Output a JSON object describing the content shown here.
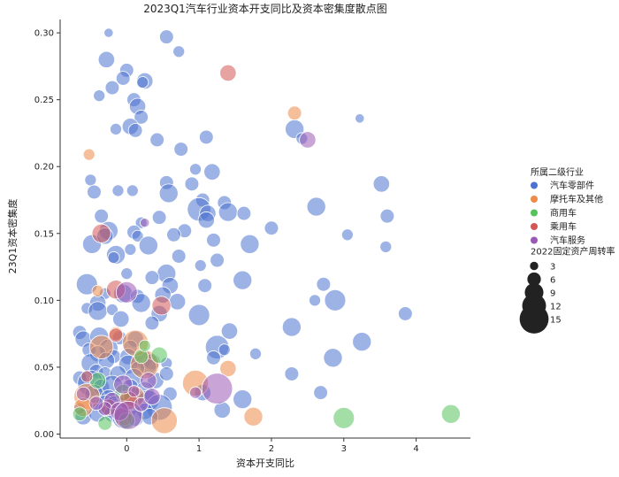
{
  "chart_data": {
    "type": "scatter",
    "title": "2023Q1汽车行业资本开支同比及资本密集度散点图",
    "xlabel": "资本开支同比",
    "ylabel": "23Q1资本密集度",
    "xlim": [
      -0.92,
      4.75
    ],
    "ylim": [
      -0.003,
      0.31
    ],
    "xticks": [
      0,
      1,
      2,
      3,
      4
    ],
    "yticks": [
      0.0,
      0.05,
      0.1,
      0.15,
      0.2,
      0.25,
      0.3
    ],
    "ytick_labels": [
      "0.00",
      "0.05",
      "0.10",
      "0.15",
      "0.20",
      "0.25",
      "0.30"
    ],
    "grid": false,
    "legend_placement": "right",
    "legend_hue_title": "所属二级行业",
    "legend_size_title": "2022固定资产周转率",
    "size_legend_values": [
      3,
      6,
      9,
      12,
      15
    ],
    "series": [
      {
        "name": "汽车零部件",
        "color": "#4c72d0",
        "points": [
          [
            -0.25,
            0.3,
            2
          ],
          [
            0.55,
            0.297,
            4
          ],
          [
            0.72,
            0.286,
            3
          ],
          [
            -0.28,
            0.28,
            5
          ],
          [
            0,
            0.272,
            4
          ],
          [
            -0.05,
            0.266,
            4
          ],
          [
            0.25,
            0.264,
            5
          ],
          [
            0.22,
            0.263,
            3
          ],
          [
            -0.2,
            0.259,
            4
          ],
          [
            -0.38,
            0.253,
            3
          ],
          [
            0.1,
            0.25,
            4
          ],
          [
            0.15,
            0.245,
            5
          ],
          [
            0.2,
            0.237,
            4
          ],
          [
            0.05,
            0.23,
            5
          ],
          [
            -0.15,
            0.228,
            3
          ],
          [
            0.12,
            0.227,
            4
          ],
          [
            2.32,
            0.228,
            6
          ],
          [
            3.22,
            0.236,
            2
          ],
          [
            2.42,
            0.221,
            3
          ],
          [
            1.1,
            0.222,
            4
          ],
          [
            0.42,
            0.22,
            4
          ],
          [
            0.75,
            0.213,
            4
          ],
          [
            0.95,
            0.198,
            3
          ],
          [
            1.18,
            0.196,
            5
          ],
          [
            -0.5,
            0.19,
            3
          ],
          [
            0.55,
            0.188,
            4
          ],
          [
            0.9,
            0.187,
            4
          ],
          [
            3.52,
            0.187,
            5
          ],
          [
            -0.45,
            0.181,
            4
          ],
          [
            0.08,
            0.182,
            3
          ],
          [
            -0.12,
            0.182,
            3
          ],
          [
            0.58,
            0.18,
            6
          ],
          [
            1.05,
            0.175,
            4
          ],
          [
            1.35,
            0.173,
            4
          ],
          [
            2.62,
            0.17,
            6
          ],
          [
            1.0,
            0.168,
            8
          ],
          [
            1.12,
            0.165,
            5
          ],
          [
            1.4,
            0.166,
            6
          ],
          [
            1.62,
            0.165,
            4
          ],
          [
            3.6,
            0.163,
            4
          ],
          [
            -0.35,
            0.163,
            4
          ],
          [
            1.1,
            0.16,
            5
          ],
          [
            0.45,
            0.162,
            4
          ],
          [
            0.2,
            0.158,
            3
          ],
          [
            2.0,
            0.154,
            4
          ],
          [
            0.8,
            0.152,
            4
          ],
          [
            -0.25,
            0.152,
            6
          ],
          [
            0.1,
            0.151,
            4
          ],
          [
            0.15,
            0.148,
            3
          ],
          [
            -0.48,
            0.142,
            6
          ],
          [
            -0.3,
            0.148,
            5
          ],
          [
            1.2,
            0.145,
            4
          ],
          [
            0.65,
            0.149,
            4
          ],
          [
            1.7,
            0.142,
            6
          ],
          [
            3.05,
            0.149,
            3
          ],
          [
            0.3,
            0.141,
            6
          ],
          [
            0.05,
            0.138,
            3
          ],
          [
            3.58,
            0.14,
            3
          ],
          [
            -0.15,
            0.134,
            6
          ],
          [
            -0.18,
            0.132,
            3
          ],
          [
            1.25,
            0.13,
            4
          ],
          [
            1.02,
            0.126,
            3
          ],
          [
            0.72,
            0.133,
            4
          ],
          [
            0.55,
            0.12,
            6
          ],
          [
            0.35,
            0.117,
            4
          ],
          [
            -0.55,
            0.112,
            7
          ],
          [
            0.0,
            0.12,
            3
          ],
          [
            0.6,
            0.111,
            5
          ],
          [
            1.08,
            0.111,
            4
          ],
          [
            1.6,
            0.115,
            6
          ],
          [
            2.72,
            0.112,
            4
          ],
          [
            0.5,
            0.104,
            5
          ],
          [
            -0.3,
            0.105,
            3
          ],
          [
            -0.05,
            0.105,
            6
          ],
          [
            0.15,
            0.103,
            4
          ],
          [
            -0.4,
            0.098,
            5
          ],
          [
            0.2,
            0.098,
            6
          ],
          [
            0.7,
            0.099,
            5
          ],
          [
            2.6,
            0.1,
            3
          ],
          [
            2.88,
            0.1,
            7
          ],
          [
            -0.55,
            0.094,
            3
          ],
          [
            -0.4,
            0.092,
            6
          ],
          [
            -0.2,
            0.093,
            3
          ],
          [
            0.45,
            0.09,
            5
          ],
          [
            1.0,
            0.089,
            7
          ],
          [
            3.85,
            0.09,
            4
          ],
          [
            -0.08,
            0.086,
            5
          ],
          [
            0.35,
            0.083,
            4
          ],
          [
            2.28,
            0.08,
            6
          ],
          [
            1.42,
            0.077,
            5
          ],
          [
            -0.65,
            0.076,
            4
          ],
          [
            -0.6,
            0.071,
            5
          ],
          [
            -0.38,
            0.073,
            6
          ],
          [
            -0.1,
            0.072,
            4
          ],
          [
            0.12,
            0.071,
            5
          ],
          [
            -0.25,
            0.064,
            6
          ],
          [
            0.05,
            0.065,
            4
          ],
          [
            1.25,
            0.065,
            8
          ],
          [
            1.35,
            0.063,
            3
          ],
          [
            3.25,
            0.069,
            6
          ],
          [
            -0.52,
            0.063,
            4
          ],
          [
            -0.4,
            0.06,
            5
          ],
          [
            -0.18,
            0.058,
            4
          ],
          [
            0.02,
            0.058,
            5
          ],
          [
            0.22,
            0.056,
            6
          ],
          [
            0.35,
            0.054,
            5
          ],
          [
            0.55,
            0.053,
            3
          ],
          [
            1.2,
            0.057,
            4
          ],
          [
            2.85,
            0.057,
            6
          ],
          [
            1.78,
            0.06,
            3
          ],
          [
            -0.5,
            0.053,
            6
          ],
          [
            -0.28,
            0.055,
            5
          ],
          [
            0.02,
            0.052,
            6
          ],
          [
            0.3,
            0.05,
            5
          ],
          [
            0.15,
            0.049,
            4
          ],
          [
            -0.42,
            0.047,
            4
          ],
          [
            -0.3,
            0.045,
            4
          ],
          [
            -0.12,
            0.045,
            5
          ],
          [
            0.1,
            0.042,
            6
          ],
          [
            0.4,
            0.04,
            5
          ],
          [
            0.55,
            0.045,
            4
          ],
          [
            2.28,
            0.045,
            4
          ],
          [
            -0.65,
            0.042,
            4
          ],
          [
            -0.5,
            0.038,
            9
          ],
          [
            -0.35,
            0.035,
            5
          ],
          [
            -0.2,
            0.036,
            7
          ],
          [
            0.05,
            0.035,
            5
          ],
          [
            0.25,
            0.032,
            6
          ],
          [
            0.6,
            0.03,
            4
          ],
          [
            1.05,
            0.031,
            5
          ],
          [
            -0.45,
            0.03,
            6
          ],
          [
            -0.25,
            0.027,
            5
          ],
          [
            0.1,
            0.028,
            6
          ],
          [
            0.3,
            0.025,
            7
          ],
          [
            0.45,
            0.02,
            9
          ],
          [
            1.6,
            0.026,
            6
          ],
          [
            2.68,
            0.031,
            4
          ],
          [
            -0.3,
            0.022,
            6
          ],
          [
            -0.15,
            0.02,
            8
          ],
          [
            0.05,
            0.02,
            5
          ],
          [
            0.25,
            0.017,
            5
          ],
          [
            1.32,
            0.018,
            5
          ],
          [
            -0.6,
            0.013,
            5
          ],
          [
            -0.4,
            0.016,
            6
          ],
          [
            -0.2,
            0.015,
            5
          ],
          [
            -0.05,
            0.012,
            7
          ],
          [
            0.12,
            0.012,
            5
          ],
          [
            0.32,
            0.013,
            5
          ],
          [
            -0.65,
            0.019,
            3
          ]
        ]
      },
      {
        "name": "摩托车及其他",
        "color": "#ee8a4a",
        "points": [
          [
            -0.52,
            0.209,
            3
          ],
          [
            2.32,
            0.24,
            4
          ],
          [
            -0.55,
            0.028,
            9
          ],
          [
            -0.6,
            0.02,
            6
          ],
          [
            -0.35,
            0.065,
            8
          ],
          [
            0.12,
            0.068,
            9
          ],
          [
            0.25,
            0.052,
            10
          ],
          [
            -0.15,
            0.075,
            4
          ],
          [
            0.1,
            0.028,
            7
          ],
          [
            0.52,
            0.01,
            9
          ],
          [
            0.95,
            0.038,
            9
          ],
          [
            1.4,
            0.049,
            5
          ],
          [
            1.75,
            0.013,
            6
          ],
          [
            -0.05,
            0.013,
            6
          ],
          [
            -0.4,
            0.107,
            3
          ]
        ]
      },
      {
        "name": "商用车",
        "color": "#55c35b",
        "points": [
          [
            -0.65,
            0.015,
            4
          ],
          [
            -0.4,
            0.04,
            5
          ],
          [
            0.2,
            0.058,
            4
          ],
          [
            0.45,
            0.059,
            5
          ],
          [
            -0.05,
            0.031,
            5
          ],
          [
            -0.3,
            0.008,
            4
          ],
          [
            0.0,
            0.01,
            5
          ],
          [
            0.25,
            0.066,
            3
          ],
          [
            3.0,
            0.012,
            7
          ],
          [
            4.48,
            0.015,
            6
          ]
        ]
      },
      {
        "name": "乘用车",
        "color": "#d45656",
        "points": [
          [
            1.4,
            0.27,
            5
          ],
          [
            -0.35,
            0.15,
            6
          ],
          [
            -0.15,
            0.108,
            6
          ],
          [
            0.48,
            0.096,
            6
          ],
          [
            0.02,
            0.025,
            6
          ],
          [
            -0.15,
            0.074,
            4
          ],
          [
            -0.55,
            0.043,
            3
          ],
          [
            -0.25,
            0.02,
            5
          ]
        ]
      },
      {
        "name": "汽车服务",
        "color": "#9b59b6",
        "points": [
          [
            2.5,
            0.22,
            5
          ],
          [
            0.25,
            0.158,
            2
          ],
          [
            0.0,
            0.106,
            7
          ],
          [
            1.25,
            0.034,
            11
          ],
          [
            -0.2,
            0.025,
            5
          ],
          [
            -0.3,
            0.019,
            4
          ],
          [
            -0.1,
            0.017,
            6
          ],
          [
            0.02,
            0.014,
            10
          ],
          [
            0.95,
            0.031,
            3
          ],
          [
            0.2,
            0.022,
            4
          ],
          [
            -0.42,
            0.023,
            4
          ],
          [
            -0.05,
            0.037,
            6
          ],
          [
            0.3,
            0.04,
            5
          ],
          [
            -0.6,
            0.03,
            4
          ],
          [
            0.1,
            0.032,
            3
          ],
          [
            0.35,
            0.028,
            5
          ]
        ]
      }
    ]
  }
}
